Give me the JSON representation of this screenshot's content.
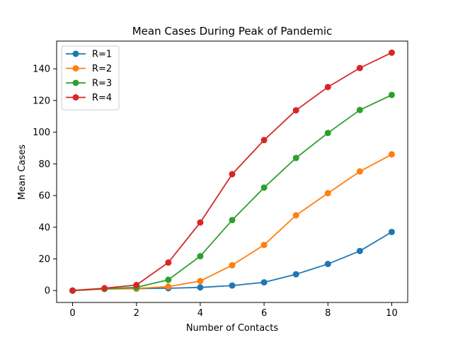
{
  "chart_data": {
    "type": "line",
    "title": "Mean Cases During Peak of Pandemic",
    "xlabel": "Number of Contacts",
    "ylabel": "Mean Cases",
    "xlim": [
      -0.5,
      10.5
    ],
    "ylim": [
      -7.5,
      157.5
    ],
    "xticks": [
      0,
      2,
      4,
      6,
      8,
      10
    ],
    "yticks": [
      0,
      20,
      40,
      60,
      80,
      100,
      120,
      140
    ],
    "grid": false,
    "legend_position": "top-left",
    "x": [
      0,
      1,
      2,
      3,
      4,
      5,
      6,
      7,
      8,
      9,
      10
    ],
    "series": [
      {
        "name": "R=1",
        "color": "#1f77b4",
        "values": [
          0,
          1,
          1.2,
          1.5,
          2,
          3.2,
          5.2,
          10.3,
          16.8,
          25,
          37
        ]
      },
      {
        "name": "R=2",
        "color": "#ff7f0e",
        "values": [
          0,
          1,
          1.3,
          2.5,
          6,
          16,
          28.8,
          47.5,
          61.5,
          75.2,
          86
        ]
      },
      {
        "name": "R=3",
        "color": "#2ca02c",
        "values": [
          0,
          1.2,
          2,
          6.8,
          21.7,
          44.5,
          65,
          83.7,
          99.5,
          114,
          123.5
        ]
      },
      {
        "name": "R=4",
        "color": "#d62728",
        "values": [
          0,
          1.5,
          3.5,
          17.7,
          43,
          73.5,
          95,
          113.8,
          128.5,
          140.5,
          150.2
        ]
      }
    ]
  }
}
